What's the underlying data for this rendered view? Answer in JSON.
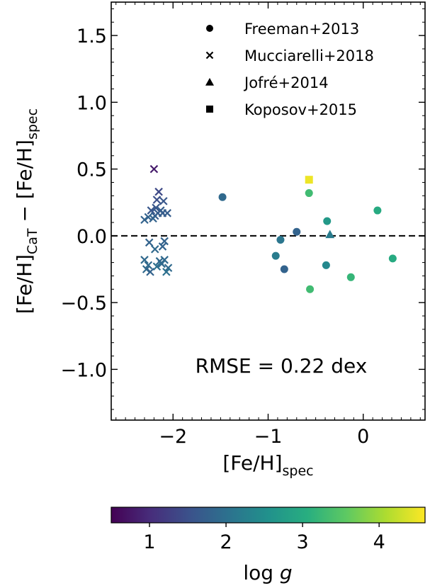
{
  "chart_data": {
    "type": "scatter",
    "xlabel": "[Fe/H]",
    "xlabel_sub": "spec",
    "ylabel_parts": [
      "[Fe/H]",
      "CaT",
      " − [Fe/H]",
      "spec"
    ],
    "xlim": [
      -2.65,
      0.65
    ],
    "ylim": [
      -1.38,
      1.75
    ],
    "x_ticks": [
      -2,
      -1,
      0
    ],
    "x_tick_labels": [
      "−2",
      "−1",
      "0"
    ],
    "y_ticks": [
      -1.0,
      -0.5,
      0.0,
      0.5,
      1.0,
      1.5
    ],
    "y_tick_labels": [
      "−1.0",
      "−0.5",
      "0.0",
      "0.5",
      "1.0",
      "1.5"
    ],
    "reference_line": {
      "y": 0,
      "style": "dashed"
    },
    "annotation": "RMSE = 0.22 dex",
    "legend_position": "top-right",
    "legend": [
      {
        "label": "Freeman+2013",
        "marker": "circle"
      },
      {
        "label": "Mucciarelli+2018",
        "marker": "x"
      },
      {
        "label": "Jofré+2014",
        "marker": "triangle"
      },
      {
        "label": "Koposov+2015",
        "marker": "square"
      }
    ],
    "colorbar": {
      "label_prefix": "log ",
      "label_var": "g",
      "range": [
        0.5,
        4.6
      ],
      "ticks": [
        1,
        2,
        3,
        4
      ],
      "tick_labels": [
        "1",
        "2",
        "3",
        "4"
      ],
      "colormap": "viridis"
    },
    "series": [
      {
        "name": "Freeman+2013",
        "marker": "circle",
        "points": [
          {
            "x": -1.48,
            "y": 0.29,
            "c": 1.9
          },
          {
            "x": -0.92,
            "y": -0.15,
            "c": 2.2
          },
          {
            "x": -0.87,
            "y": -0.03,
            "c": 2.1
          },
          {
            "x": -0.83,
            "y": -0.25,
            "c": 1.8
          },
          {
            "x": -0.7,
            "y": 0.03,
            "c": 1.8
          },
          {
            "x": -0.57,
            "y": 0.32,
            "c": 3.3
          },
          {
            "x": -0.56,
            "y": -0.4,
            "c": 3.3
          },
          {
            "x": -0.38,
            "y": 0.11,
            "c": 2.7
          },
          {
            "x": -0.39,
            "y": -0.22,
            "c": 2.4
          },
          {
            "x": -0.13,
            "y": -0.31,
            "c": 3.2
          },
          {
            "x": 0.15,
            "y": 0.19,
            "c": 3.0
          },
          {
            "x": 0.31,
            "y": -0.17,
            "c": 3.0
          }
        ]
      },
      {
        "name": "Mucciarelli+2018",
        "marker": "x",
        "points": [
          {
            "x": -2.2,
            "y": 0.5,
            "c": 0.8
          },
          {
            "x": -2.15,
            "y": 0.33,
            "c": 1.4
          },
          {
            "x": -2.17,
            "y": 0.27,
            "c": 1.5
          },
          {
            "x": -2.1,
            "y": 0.26,
            "c": 1.6
          },
          {
            "x": -2.18,
            "y": 0.21,
            "c": 1.6
          },
          {
            "x": -2.23,
            "y": 0.19,
            "c": 1.6
          },
          {
            "x": -2.13,
            "y": 0.19,
            "c": 1.7
          },
          {
            "x": -2.16,
            "y": 0.17,
            "c": 1.7
          },
          {
            "x": -2.11,
            "y": 0.17,
            "c": 1.7
          },
          {
            "x": -2.06,
            "y": 0.17,
            "c": 1.7
          },
          {
            "x": -2.19,
            "y": 0.15,
            "c": 1.7
          },
          {
            "x": -2.26,
            "y": 0.14,
            "c": 1.8
          },
          {
            "x": -2.21,
            "y": 0.13,
            "c": 1.8
          },
          {
            "x": -2.3,
            "y": 0.12,
            "c": 1.8
          },
          {
            "x": -2.25,
            "y": -0.05,
            "c": 1.8
          },
          {
            "x": -2.09,
            "y": -0.04,
            "c": 1.8
          },
          {
            "x": -2.11,
            "y": -0.08,
            "c": 1.8
          },
          {
            "x": -2.19,
            "y": -0.1,
            "c": 1.9
          },
          {
            "x": -2.3,
            "y": -0.18,
            "c": 1.9
          },
          {
            "x": -2.14,
            "y": -0.19,
            "c": 1.9
          },
          {
            "x": -2.09,
            "y": -0.18,
            "c": 1.9
          },
          {
            "x": -2.12,
            "y": -0.21,
            "c": 1.9
          },
          {
            "x": -2.26,
            "y": -0.22,
            "c": 1.9
          },
          {
            "x": -2.05,
            "y": -0.24,
            "c": 1.9
          },
          {
            "x": -2.28,
            "y": -0.25,
            "c": 1.9
          },
          {
            "x": -2.17,
            "y": -0.23,
            "c": 2.0
          },
          {
            "x": -2.07,
            "y": -0.27,
            "c": 2.0
          },
          {
            "x": -2.24,
            "y": -0.27,
            "c": 1.8
          }
        ]
      },
      {
        "name": "Jofré+2014",
        "marker": "triangle",
        "points": [
          {
            "x": -0.35,
            "y": 0.01,
            "c": 2.2
          }
        ]
      },
      {
        "name": "Koposov+2015",
        "marker": "square",
        "points": [
          {
            "x": -0.57,
            "y": 0.42,
            "c": 4.5
          }
        ]
      }
    ]
  }
}
